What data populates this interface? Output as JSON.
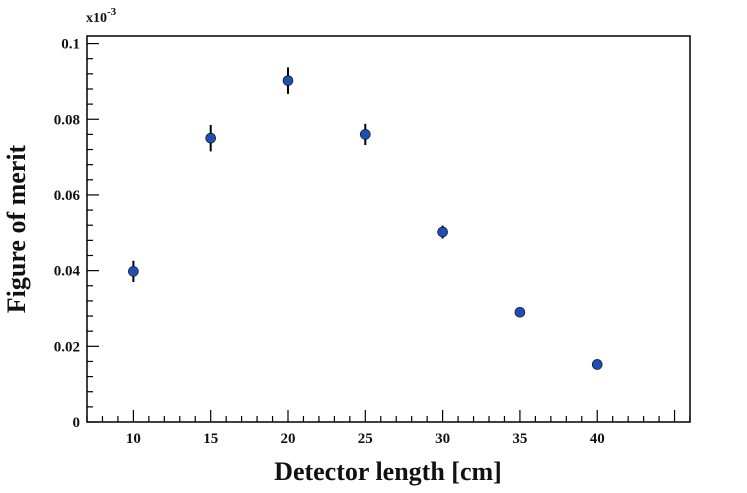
{
  "chart_data": {
    "type": "scatter",
    "xlabel": "Detector length [cm]",
    "ylabel": "Figure of merit",
    "y_multiplier": {
      "base": "x10",
      "exponent": "-3"
    },
    "xlim": [
      7,
      46
    ],
    "ylim": [
      0,
      0.102
    ],
    "xticks": [
      "10",
      "15",
      "20",
      "25",
      "30",
      "35",
      "40"
    ],
    "yticks": [
      "0",
      "0.02",
      "0.04",
      "0.06",
      "0.08",
      "0.1"
    ],
    "grid": false,
    "marker_color": "#1f4fb5",
    "points": [
      {
        "x": 10,
        "y": 0.0398,
        "err": 0.0028
      },
      {
        "x": 15,
        "y": 0.075,
        "err": 0.0035
      },
      {
        "x": 20,
        "y": 0.0902,
        "err": 0.0035
      },
      {
        "x": 25,
        "y": 0.076,
        "err": 0.0028
      },
      {
        "x": 30,
        "y": 0.0502,
        "err": 0.0017
      },
      {
        "x": 35,
        "y": 0.029,
        "err": 0.0008
      },
      {
        "x": 40,
        "y": 0.0152,
        "err": 0.0006
      }
    ]
  }
}
